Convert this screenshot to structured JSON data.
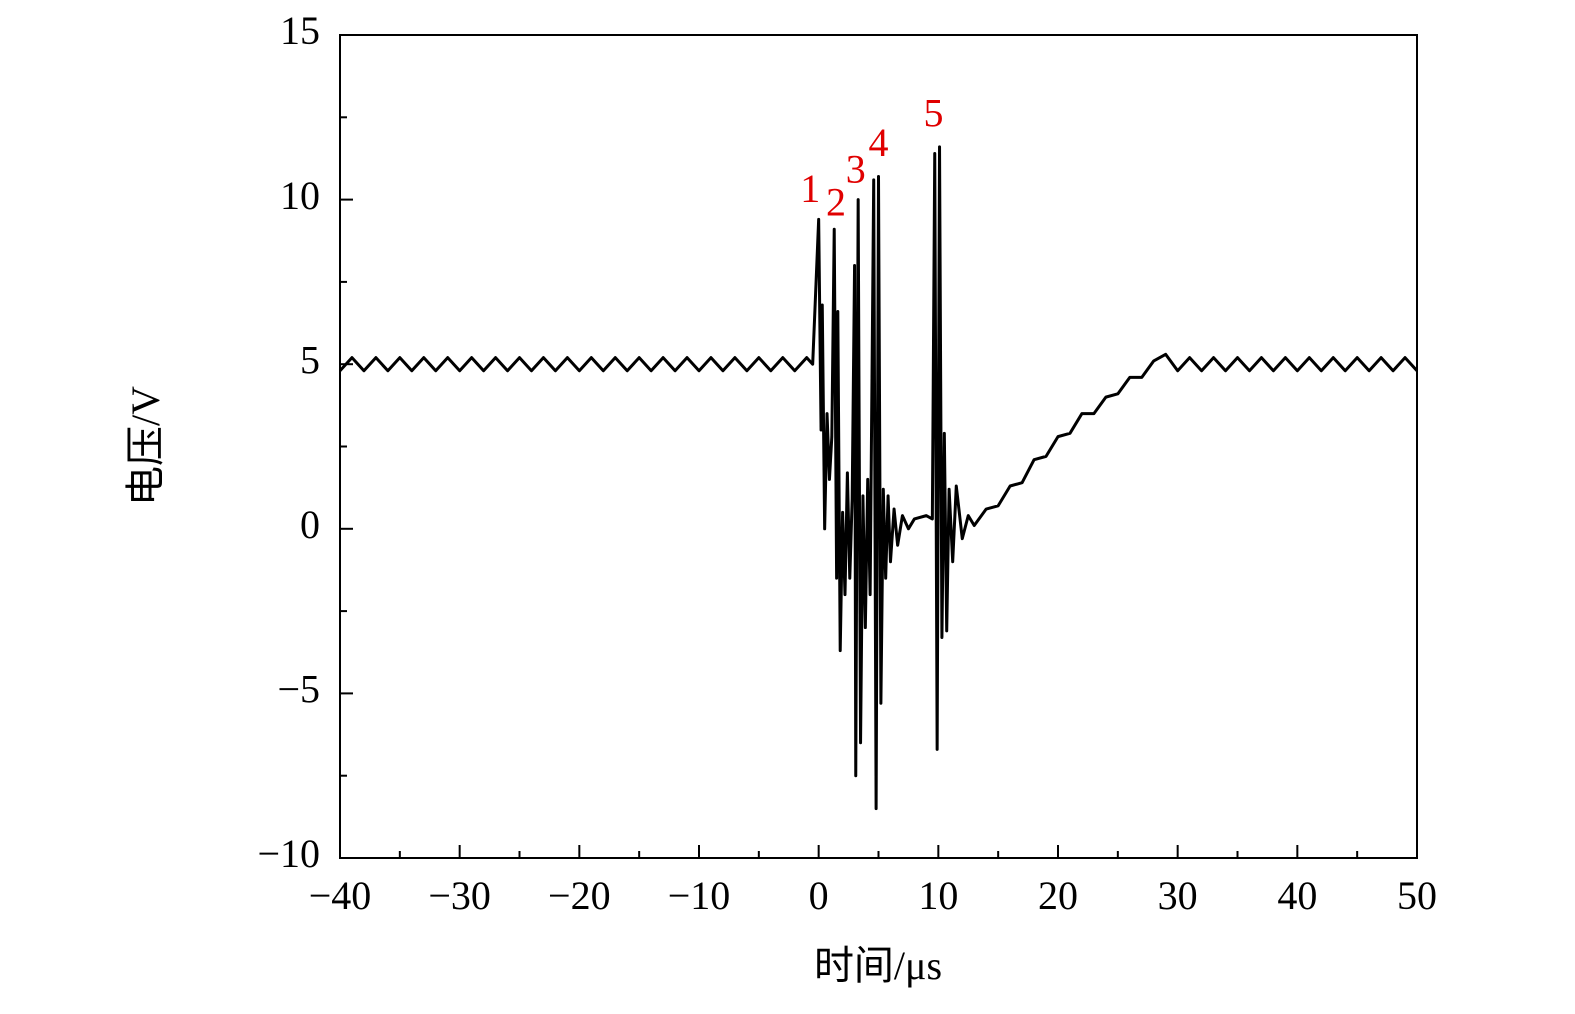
{
  "chart_data": {
    "type": "line",
    "xlabel": "时间/μs",
    "ylabel": "电压/V",
    "color": "#000000",
    "x": [
      -40,
      -39,
      -38,
      -37,
      -36,
      -35,
      -34,
      -33,
      -32,
      -31,
      -30,
      -29,
      -28,
      -27,
      -26,
      -25,
      -24,
      -23,
      -22,
      -21,
      -20,
      -19,
      -18,
      -17,
      -16,
      -15,
      -14,
      -13,
      -12,
      -11,
      -10,
      -9,
      -8,
      -7,
      -6,
      -5,
      -4,
      -3,
      -2,
      -1,
      -0.5,
      0,
      0.2,
      0.3,
      0.5,
      0.7,
      0.9,
      1.1,
      1.3,
      1.5,
      1.6,
      1.8,
      2.0,
      2.2,
      2.4,
      2.6,
      2.8,
      3.0,
      3.1,
      3.3,
      3.5,
      3.7,
      3.9,
      4.1,
      4.3,
      4.6,
      4.8,
      5.0,
      5.2,
      5.4,
      5.6,
      5.8,
      6.0,
      6.3,
      6.6,
      7,
      7.5,
      8,
      9,
      9.5,
      9.7,
      9.9,
      10.1,
      10.3,
      10.5,
      10.7,
      10.9,
      11.2,
      11.5,
      12,
      12.5,
      13,
      14,
      15,
      16,
      17,
      18,
      19,
      20,
      21,
      22,
      23,
      24,
      25,
      26,
      27,
      28,
      29,
      30,
      31,
      32,
      33,
      34,
      35,
      36,
      37,
      38,
      39,
      40,
      41,
      42,
      43,
      44,
      45,
      46,
      47,
      48,
      49,
      50
    ],
    "values": [
      4.8,
      5.2,
      4.8,
      5.2,
      4.8,
      5.2,
      4.8,
      5.2,
      4.8,
      5.2,
      4.8,
      5.2,
      4.8,
      5.2,
      4.8,
      5.2,
      4.8,
      5.2,
      4.8,
      5.2,
      4.8,
      5.2,
      4.8,
      5.2,
      4.8,
      5.2,
      4.8,
      5.2,
      4.8,
      5.2,
      4.8,
      5.2,
      4.8,
      5.2,
      4.8,
      5.2,
      4.8,
      5.2,
      4.8,
      5.2,
      5.0,
      9.4,
      3.0,
      6.8,
      0.0,
      3.5,
      1.5,
      2.8,
      9.1,
      -1.5,
      6.6,
      -3.7,
      0.5,
      -2.0,
      1.7,
      -1.5,
      0.9,
      8.0,
      -7.5,
      10.0,
      -6.5,
      1.0,
      -3.0,
      1.5,
      -2.0,
      10.6,
      -8.5,
      10.7,
      -5.3,
      1.2,
      -1.5,
      1.0,
      -1.0,
      0.6,
      -0.5,
      0.4,
      0.0,
      0.3,
      0.4,
      0.3,
      11.4,
      -6.7,
      11.6,
      -3.3,
      2.9,
      -3.1,
      1.2,
      -1.0,
      1.3,
      -0.3,
      0.4,
      0.1,
      0.6,
      0.7,
      1.3,
      1.4,
      2.1,
      2.2,
      2.8,
      2.9,
      3.5,
      3.5,
      4.0,
      4.1,
      4.6,
      4.6,
      5.1,
      5.3,
      4.8,
      5.2,
      4.8,
      5.2,
      4.8,
      5.2,
      4.8,
      5.2,
      4.8,
      5.2,
      4.8,
      5.2,
      4.8,
      5.2,
      4.8,
      5.2,
      4.8,
      5.2,
      4.8,
      5.2,
      4.8
    ],
    "xlim": [
      -40,
      50
    ],
    "ylim": [
      -10,
      15
    ],
    "xticks": [
      {
        "value": -40,
        "label": "−40"
      },
      {
        "value": -30,
        "label": "−30"
      },
      {
        "value": -20,
        "label": "−20"
      },
      {
        "value": -10,
        "label": "−10"
      },
      0,
      10,
      20,
      30,
      40,
      50
    ],
    "yticks": [
      {
        "value": -10,
        "label": "−10"
      },
      {
        "value": -5,
        "label": "−5"
      },
      0,
      5,
      10,
      15
    ],
    "xminorticks": [
      -35,
      -25,
      -15,
      -5,
      5,
      15,
      25,
      35,
      45
    ],
    "yminorticks": [
      -7.5,
      -2.5,
      2.5,
      7.5,
      12.5
    ],
    "annotations": [
      {
        "text": "1",
        "x": -0.7,
        "y": 10.2
      },
      {
        "text": "2",
        "x": 1.45,
        "y": 9.8
      },
      {
        "text": "3",
        "x": 3.1,
        "y": 10.8
      },
      {
        "text": "4",
        "x": 5.0,
        "y": 11.6
      },
      {
        "text": "5",
        "x": 9.6,
        "y": 12.5
      }
    ]
  }
}
